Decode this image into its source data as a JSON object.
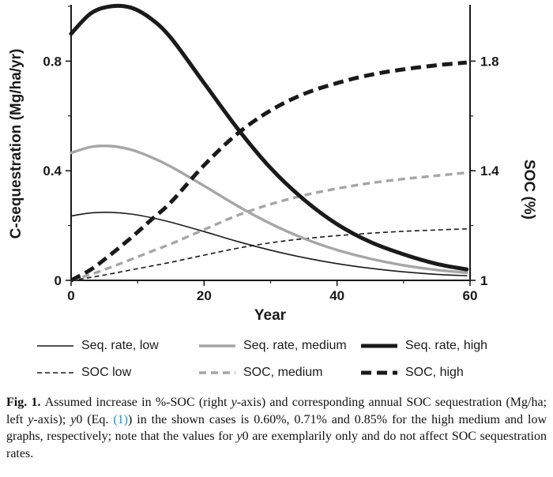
{
  "link_color": "#2a8cc0",
  "chart_data": {
    "type": "line",
    "title": "",
    "xlabel": "Year",
    "ylabel_left": "C-sequestration (Mg/ha/yr)",
    "ylabel_right": "SOC (%)",
    "xlim": [
      0,
      60
    ],
    "ylim_left": [
      0,
      1.0
    ],
    "ylim_right": [
      1.0,
      2.0
    ],
    "grid": false,
    "legend_position": "below",
    "x_ticks_major": [
      0,
      20,
      40,
      60
    ],
    "x_ticks_minor": [
      10,
      30,
      50
    ],
    "y_left_ticks_major": [
      0,
      0.4,
      0.8
    ],
    "y_left_ticks_minor": [
      0.2,
      0.6,
      1.0
    ],
    "y_right_ticks_major": [
      1,
      1.4,
      1.8
    ],
    "y_right_ticks_minor": [
      1.2,
      1.6
    ],
    "x": [
      0,
      3,
      6,
      9,
      12,
      15,
      20,
      25,
      30,
      35,
      40,
      45,
      50,
      55,
      59.5
    ],
    "series": [
      {
        "name": "Seq. rate, low",
        "axis": "left",
        "color": "#1a1a1a",
        "width": 1.6,
        "dash": "",
        "values": [
          0.235,
          0.246,
          0.248,
          0.242,
          0.229,
          0.212,
          0.178,
          0.142,
          0.11,
          0.083,
          0.061,
          0.044,
          0.031,
          0.022,
          0.017
        ]
      },
      {
        "name": "Seq. rate, medium",
        "axis": "left",
        "color": "#a6a6a6",
        "width": 3.4,
        "dash": "",
        "values": [
          0.465,
          0.487,
          0.49,
          0.477,
          0.45,
          0.415,
          0.345,
          0.272,
          0.207,
          0.153,
          0.111,
          0.079,
          0.055,
          0.038,
          0.028
        ]
      },
      {
        "name": "Seq. rate, high",
        "axis": "left",
        "color": "#1a1a1a",
        "width": 5.0,
        "dash": "",
        "values": [
          0.9,
          0.975,
          1.0,
          0.995,
          0.955,
          0.885,
          0.72,
          0.555,
          0.41,
          0.295,
          0.205,
          0.14,
          0.095,
          0.06,
          0.04
        ]
      },
      {
        "name": "SOC low",
        "axis": "right",
        "color": "#1a1a1a",
        "width": 1.6,
        "dash": "6 4",
        "values": [
          1.0,
          1.011,
          1.024,
          1.038,
          1.052,
          1.066,
          1.092,
          1.117,
          1.137,
          1.152,
          1.163,
          1.172,
          1.179,
          1.184,
          1.188
        ]
      },
      {
        "name": "SOC, medium",
        "axis": "right",
        "color": "#a6a6a6",
        "width": 3.4,
        "dash": "9 6",
        "values": [
          1.0,
          1.022,
          1.048,
          1.076,
          1.105,
          1.133,
          1.185,
          1.237,
          1.278,
          1.31,
          1.335,
          1.355,
          1.37,
          1.382,
          1.393
        ]
      },
      {
        "name": "SOC, high",
        "axis": "right",
        "color": "#1a1a1a",
        "width": 5.0,
        "dash": "13 7",
        "values": [
          1.0,
          1.04,
          1.095,
          1.155,
          1.22,
          1.285,
          1.42,
          1.535,
          1.62,
          1.68,
          1.72,
          1.75,
          1.77,
          1.785,
          1.795
        ]
      }
    ]
  },
  "caption": {
    "segments": [
      {
        "style": "bold",
        "text": "Fig. 1. "
      },
      {
        "style": "normal",
        "text": "Assumed increase in %-SOC (right "
      },
      {
        "style": "italic",
        "text": "y"
      },
      {
        "style": "normal",
        "text": "-axis) and corresponding annual SOC sequestration (Mg/ha; left "
      },
      {
        "style": "italic",
        "text": "y"
      },
      {
        "style": "normal",
        "text": "-axis); "
      },
      {
        "style": "italic",
        "text": "y"
      },
      {
        "style": "normal",
        "text": "0 (Eq. "
      },
      {
        "style": "link",
        "text": "(1)"
      },
      {
        "style": "normal",
        "text": ") in the shown cases is 0.60%, 0.71% and 0.85% for the high medium and low graphs, respectively; note that the values for "
      },
      {
        "style": "italic",
        "text": "y"
      },
      {
        "style": "normal",
        "text": "0 are exemplarily only and do not affect SOC sequestration rates."
      }
    ]
  }
}
